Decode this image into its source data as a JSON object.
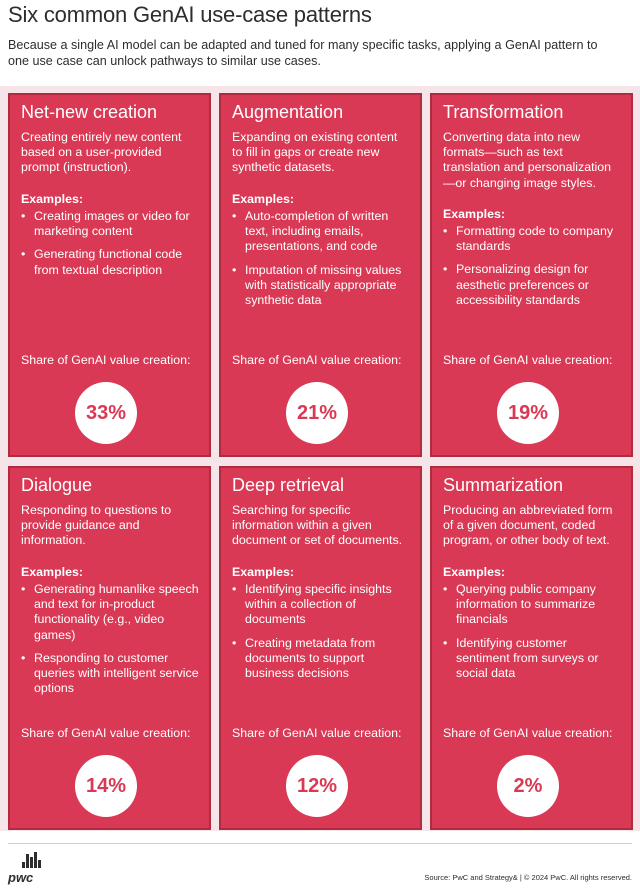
{
  "header": {
    "title": "Six common GenAI use-case patterns",
    "subtitle": "Because a single AI model can be adapted and tuned for many specific tasks, applying a GenAI pattern to one use case can unlock pathways to similar use cases."
  },
  "cards": [
    {
      "title": "Net-new creation",
      "description": "Creating entirely new content based on a user-provided prompt (instruction).",
      "examples_label": "Examples:",
      "examples": [
        "Creating images or video for marketing content",
        "Generating functional code from textual description"
      ],
      "share_label": "Share of GenAI value creation:",
      "share_value": "33%"
    },
    {
      "title": "Augmentation",
      "description": "Expanding on existing content to fill in gaps or create new synthetic datasets.",
      "examples_label": "Examples:",
      "examples": [
        "Auto-completion of written text, including emails, presentations, and code",
        "Imputation of missing values with statistically appropriate synthetic data"
      ],
      "share_label": "Share of GenAI value creation:",
      "share_value": "21%"
    },
    {
      "title": "Transformation",
      "description": "Converting data into new formats—such as text translation and personalization—or changing image styles.",
      "examples_label": "Examples:",
      "examples": [
        "Formatting code to company standards",
        "Personalizing design for aesthetic preferences or accessibility standards"
      ],
      "share_label": "Share of GenAI value creation:",
      "share_value": "19%"
    },
    {
      "title": "Dialogue",
      "description": "Responding to questions to provide guidance and information.",
      "examples_label": "Examples:",
      "examples": [
        "Generating humanlike speech and text for in-product functionality (e.g., video games)",
        "Responding to customer queries with intelligent service options"
      ],
      "share_label": "Share of GenAI value creation:",
      "share_value": "14%"
    },
    {
      "title": "Deep retrieval",
      "description": "Searching for specific information within a given document or set of documents.",
      "examples_label": "Examples:",
      "examples": [
        "Identifying specific insights within a collection of documents",
        "Creating metadata from documents to support business decisions"
      ],
      "share_label": "Share of GenAI value creation:",
      "share_value": "12%"
    },
    {
      "title": "Summarization",
      "description": "Producing an abbreviated form of a given document, coded program, or other body of text.",
      "examples_label": "Examples:",
      "examples": [
        "Querying public company information to summarize financials",
        "Identifying customer sentiment from surveys or social data"
      ],
      "share_label": "Share of GenAI value creation:",
      "share_value": "2%"
    }
  ],
  "footer": {
    "logo_text": "pwc",
    "source": "Source: PwC and Strategy&  |  © 2024 PwC. All rights reserved."
  },
  "colors": {
    "card": "#d93954",
    "card_border": "#b02a40",
    "background_band": "#f6e5e8"
  }
}
